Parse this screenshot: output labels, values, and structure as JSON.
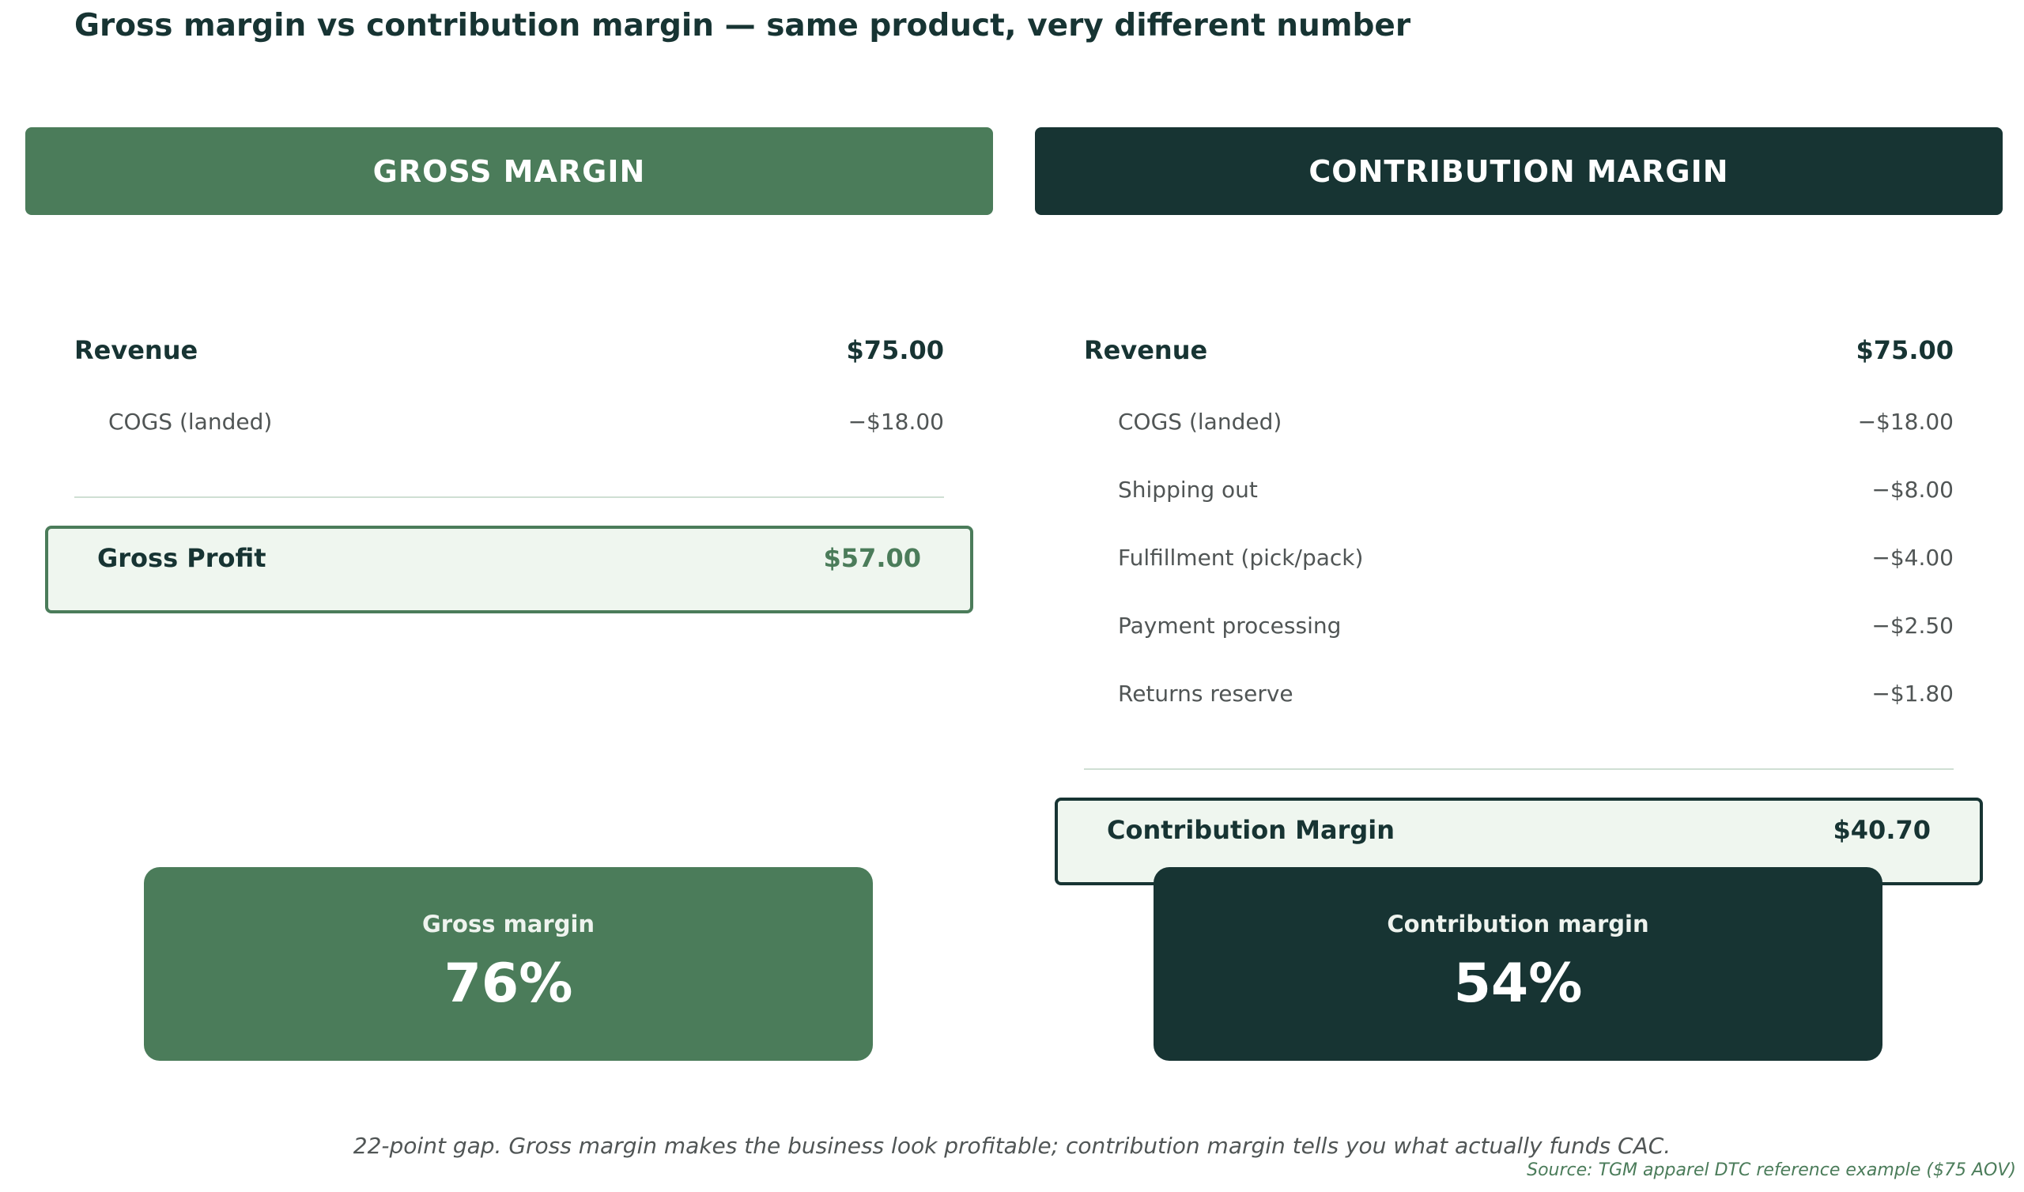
{
  "title": "Gross margin vs contribution margin — same product, very different number",
  "gross": {
    "header": "GROSS MARGIN",
    "revenue": {
      "label": "Revenue",
      "value": "$75.00"
    },
    "costs": [
      {
        "label": "COGS (landed)",
        "value": "−$18.00"
      }
    ],
    "total": {
      "label": "Gross Profit",
      "value": "$57.00"
    },
    "kpi": {
      "label": "Gross margin",
      "value": "76%"
    }
  },
  "contribution": {
    "header": "CONTRIBUTION MARGIN",
    "revenue": {
      "label": "Revenue",
      "value": "$75.00"
    },
    "costs": [
      {
        "label": "COGS (landed)",
        "value": "−$18.00"
      },
      {
        "label": "Shipping out",
        "value": "−$8.00"
      },
      {
        "label": "Fulfillment (pick/pack)",
        "value": "−$4.00"
      },
      {
        "label": "Payment processing",
        "value": "−$2.50"
      },
      {
        "label": "Returns reserve",
        "value": "−$1.80"
      }
    ],
    "total": {
      "label": "Contribution Margin",
      "value": "$40.70"
    },
    "kpi": {
      "label": "Contribution margin",
      "value": "54%"
    }
  },
  "footnote": "22-point gap. Gross margin makes the business look profitable; contribution margin tells you what actually funds CAC.",
  "source": "Source: TGM apparel DTC reference example ($75 AOV)",
  "colors": {
    "gross_accent": "#4b7c5a",
    "contribution_accent": "#173433",
    "total_fill": "#eff6ef"
  }
}
